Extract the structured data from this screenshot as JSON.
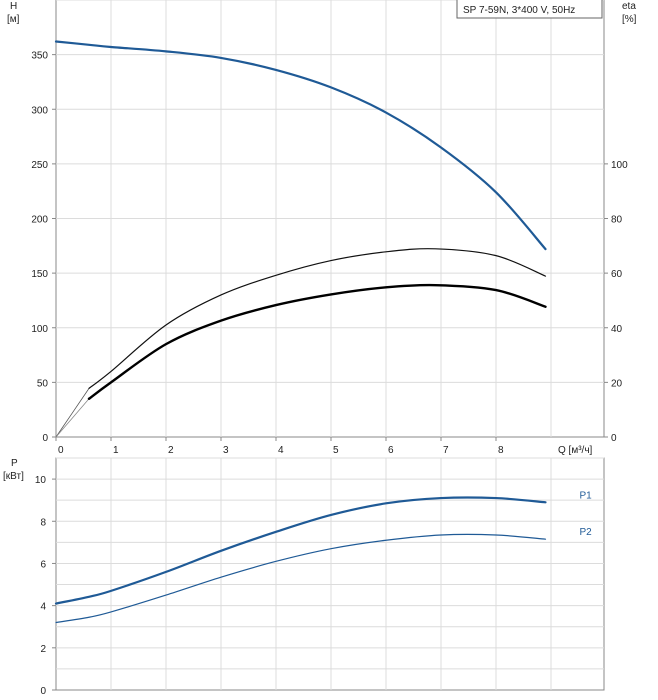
{
  "chart_data": [
    {
      "type": "line",
      "panel": "head-efficiency",
      "title": "SP 7-59N, 3*400 V, 50Hz",
      "y_left_label": "H",
      "y_left_unit": "[м]",
      "y_right_label": "eta",
      "y_right_unit": "[%]",
      "x_label": "Q [м³/ч]",
      "xlim": [
        0,
        10
      ],
      "x_ticks": [
        0,
        1,
        2,
        3,
        4,
        5,
        6,
        7,
        8
      ],
      "ylim": [
        0,
        400
      ],
      "y_ticks": [
        0,
        50,
        100,
        150,
        200,
        250,
        300,
        350
      ],
      "y_right_lim": [
        0,
        160
      ],
      "y_right_ticks": [
        0,
        20,
        40,
        60,
        80,
        100
      ],
      "grid": true,
      "series": [
        {
          "axis": "left",
          "color": "#1f5a96",
          "width": 2.2,
          "x": [
            0,
            0.6,
            1,
            2,
            3,
            4,
            5,
            6,
            7,
            8,
            8.9
          ],
          "y": [
            362,
            359,
            357,
            353,
            347,
            336,
            320,
            297,
            265,
            224,
            172
          ]
        },
        {
          "axis": "right",
          "color": "#111111",
          "width": 1.2,
          "x": [
            0.6,
            1,
            2,
            3,
            4,
            5,
            6,
            6.9,
            8,
            8.9
          ],
          "y": [
            17.8,
            24,
            41,
            52,
            59.2,
            64.6,
            67.8,
            68.9,
            66.4,
            58.9
          ]
        },
        {
          "axis": "right",
          "color": "#000000",
          "width": 2.4,
          "x": [
            0.6,
            1,
            2,
            3,
            4,
            5,
            6,
            6.9,
            8,
            8.9
          ],
          "y": [
            14,
            20,
            34,
            42.6,
            48.3,
            52.2,
            54.8,
            55.6,
            53.8,
            47.7
          ]
        }
      ],
      "extrapolations": [
        {
          "axis": "left",
          "color": "#1f5a96",
          "x": [
            0,
            0.6
          ],
          "y": [
            362,
            359
          ]
        },
        {
          "axis": "right",
          "color": "#555555",
          "x": [
            0,
            0.6
          ],
          "y": [
            0,
            17.8
          ]
        },
        {
          "axis": "right",
          "color": "#888888",
          "x": [
            0,
            0.6
          ],
          "y": [
            0,
            14
          ]
        }
      ]
    },
    {
      "type": "line",
      "panel": "power",
      "y_label": "P",
      "y_unit": "[кВт]",
      "xlim": [
        0,
        10
      ],
      "ylim": [
        0,
        11
      ],
      "y_ticks": [
        0,
        2,
        4,
        6,
        8,
        10
      ],
      "grid": true,
      "series": [
        {
          "name": "P1",
          "color": "#1f5a96",
          "width": 2.2,
          "x": [
            0,
            0.6,
            1,
            2,
            3,
            4,
            5,
            6,
            7,
            8,
            8.9
          ],
          "y": [
            4.1,
            4.42,
            4.7,
            5.6,
            6.6,
            7.5,
            8.3,
            8.85,
            9.1,
            9.1,
            8.9
          ]
        },
        {
          "name": "P2",
          "color": "#1f5a96",
          "width": 1.2,
          "x": [
            0,
            0.6,
            1,
            2,
            3,
            4,
            5,
            6,
            7,
            8,
            8.9
          ],
          "y": [
            3.2,
            3.45,
            3.7,
            4.5,
            5.35,
            6.1,
            6.7,
            7.1,
            7.35,
            7.35,
            7.15
          ]
        }
      ]
    }
  ]
}
